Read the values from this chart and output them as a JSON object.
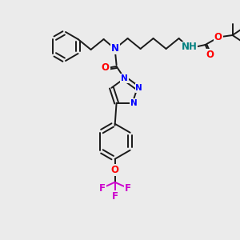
{
  "bg_color": "#ebebeb",
  "C": "#1a1a1a",
  "N": "#0000ff",
  "O": "#ff0000",
  "F": "#cc00cc",
  "H_col": "#008080",
  "lw": 1.4,
  "fs": 8.5,
  "fs_small": 7.5
}
